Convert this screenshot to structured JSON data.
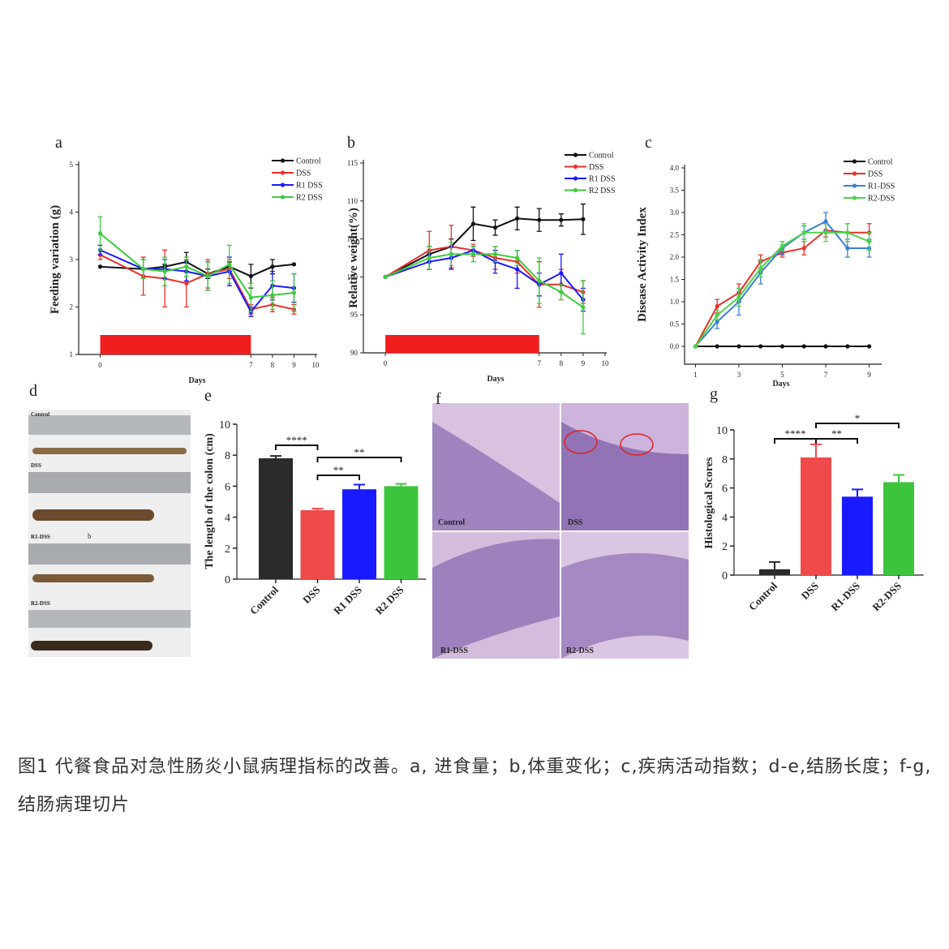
{
  "chart_data": [
    {
      "type": "line",
      "panel_label": "a",
      "y_label": "Feeding variation (g)",
      "x_label": "Days",
      "x": [
        0,
        2,
        3,
        4,
        5,
        6,
        7,
        8,
        9
      ],
      "xlim": [
        -1,
        10
      ],
      "xticks": [
        0,
        7,
        8,
        9,
        10
      ],
      "ylim": [
        1,
        5
      ],
      "yticks": [
        1,
        2,
        3,
        4,
        5
      ],
      "shaded_span": [
        0,
        7
      ],
      "shaded_color": "#f01e1e",
      "series": [
        {
          "name": "Control",
          "color": "#111111",
          "values": [
            2.85,
            2.8,
            2.85,
            2.95,
            2.7,
            2.85,
            2.65,
            2.85,
            2.9
          ],
          "errors": [
            0,
            0,
            0.05,
            0.2,
            0.1,
            0.1,
            0.25,
            0.15,
            0
          ]
        },
        {
          "name": "DSS",
          "color": "#e8302a",
          "values": [
            3.1,
            2.65,
            2.6,
            2.5,
            2.7,
            2.8,
            1.95,
            2.05,
            1.95
          ],
          "errors": [
            0.1,
            0.4,
            0.6,
            0.5,
            0.3,
            0.2,
            0.1,
            0.15,
            0.1
          ]
        },
        {
          "name": "R1 DSS",
          "color": "#1a1aff",
          "values": [
            3.2,
            2.8,
            2.8,
            2.75,
            2.65,
            2.75,
            1.9,
            2.45,
            2.4
          ],
          "errors": [
            0.1,
            0.2,
            0.2,
            0.2,
            0.3,
            0.3,
            0.1,
            0.3,
            0.3
          ]
        },
        {
          "name": "R2 DSS",
          "color": "#3ccc3c",
          "values": [
            3.55,
            2.8,
            2.75,
            2.85,
            2.65,
            2.9,
            2.2,
            2.25,
            2.3
          ],
          "errors": [
            0.35,
            0.2,
            0.3,
            0.2,
            0.3,
            0.4,
            0.3,
            0.3,
            0.4
          ]
        }
      ]
    },
    {
      "type": "line",
      "panel_label": "b",
      "y_label": "Relative weight(%)",
      "x_label": "Days",
      "x": [
        0,
        2,
        3,
        4,
        5,
        6,
        7,
        8,
        9
      ],
      "xlim": [
        -1,
        10
      ],
      "xticks": [
        0,
        7,
        8,
        9,
        10
      ],
      "ylim": [
        90,
        115
      ],
      "yticks": [
        90,
        95,
        100,
        105,
        110,
        115
      ],
      "shaded_span": [
        0,
        7
      ],
      "shaded_color": "#f01e1e",
      "series": [
        {
          "name": "Control",
          "color": "#111111",
          "values": [
            100,
            103,
            104,
            107,
            106.5,
            107.7,
            107.5,
            107.5,
            107.6
          ],
          "errors": [
            0,
            1,
            1,
            2.2,
            1,
            1.5,
            1.5,
            0.8,
            2
          ]
        },
        {
          "name": "DSS",
          "color": "#e8302a",
          "values": [
            100,
            103.5,
            104,
            103.5,
            102.5,
            102,
            99,
            99,
            98
          ],
          "errors": [
            0,
            2.5,
            2.8,
            0.8,
            1.5,
            1.5,
            3,
            2,
            1.5
          ]
        },
        {
          "name": "R1 DSS",
          "color": "#1a1aff",
          "values": [
            100,
            102,
            102.5,
            103.5,
            102,
            101,
            99,
            100.5,
            97
          ],
          "errors": [
            0,
            1,
            1.5,
            0.5,
            1.5,
            2.5,
            1.5,
            2.5,
            1.5
          ]
        },
        {
          "name": "R2 DSS",
          "color": "#3ccc3c",
          "values": [
            100,
            102.5,
            103,
            103,
            103,
            102.5,
            99.5,
            98,
            96
          ],
          "errors": [
            0,
            1.5,
            1.5,
            1,
            1,
            1,
            3,
            1,
            3.5
          ]
        }
      ]
    },
    {
      "type": "line",
      "panel_label": "c",
      "y_label": "Disease Activity Index",
      "x_label": "Days",
      "x": [
        1,
        2,
        3,
        4,
        5,
        6,
        7,
        8,
        9
      ],
      "xlim": [
        0.5,
        9.5
      ],
      "xticks": [
        1,
        3,
        5,
        7,
        9
      ],
      "ylim": [
        -0.4,
        4.0
      ],
      "yticks": [
        {
          "value": 0,
          "label": "0.0"
        },
        {
          "value": 0.5,
          "label": "0.5"
        },
        {
          "value": 1,
          "label": "1.0"
        },
        {
          "value": 1.5,
          "label": "1.5"
        },
        {
          "value": 2,
          "label": "2.0"
        },
        {
          "value": 2.5,
          "label": "2.5"
        },
        {
          "value": 3,
          "label": "3.0"
        },
        {
          "value": 3.5,
          "label": "3.5"
        },
        {
          "value": 4,
          "label": "4.0"
        }
      ],
      "series": [
        {
          "name": "Control",
          "color": "#111111",
          "values": [
            0,
            0,
            0,
            0,
            0,
            0,
            0,
            0,
            0
          ],
          "errors": [
            0,
            0,
            0,
            0,
            0,
            0,
            0,
            0,
            0
          ]
        },
        {
          "name": "DSS",
          "color": "#e8302a",
          "values": [
            0,
            0.9,
            1.2,
            1.9,
            2.1,
            2.2,
            2.6,
            2.55,
            2.55
          ],
          "errors": [
            0,
            0.15,
            0.2,
            0.15,
            0.1,
            0.15,
            0.15,
            0.2,
            0.2
          ]
        },
        {
          "name": "R1-DSS",
          "color": "#3a7fd8",
          "values": [
            0,
            0.55,
            1.0,
            1.65,
            2.2,
            2.55,
            2.8,
            2.2,
            2.2
          ],
          "errors": [
            0,
            0.15,
            0.3,
            0.25,
            0.15,
            0.15,
            0.2,
            0.2,
            0.2
          ]
        },
        {
          "name": "R2-DSS",
          "color": "#4cd44c",
          "values": [
            0,
            0.7,
            1.1,
            1.75,
            2.25,
            2.55,
            2.55,
            2.55,
            2.35
          ],
          "errors": [
            0,
            0.1,
            0.2,
            0.2,
            0.1,
            0.2,
            0.2,
            0.2,
            0.2
          ]
        }
      ]
    },
    {
      "type": "bar",
      "panel_label": "e",
      "y_label": "The length of the colon (cm)",
      "categories": [
        "Control",
        "DSS",
        "R1 DSS",
        "R2 DSS"
      ],
      "values": [
        7.8,
        4.45,
        5.8,
        6.0
      ],
      "errors": [
        0.15,
        0.1,
        0.3,
        0.15
      ],
      "colors": [
        "#2b2b2b",
        "#ef4a4a",
        "#1a1aff",
        "#3cc43c"
      ],
      "ylim": [
        0,
        10
      ],
      "yticks": [
        0,
        2,
        4,
        6,
        8,
        10
      ],
      "significance": [
        {
          "pair": [
            0,
            1
          ],
          "label": "****"
        },
        {
          "pair": [
            1,
            2
          ],
          "label": "**"
        },
        {
          "pair": [
            1,
            3
          ],
          "label": "**"
        }
      ]
    },
    {
      "type": "bar",
      "panel_label": "g",
      "y_label": "Histological Scores",
      "categories": [
        "Control",
        "DSS",
        "R1-DSS",
        "R2-DSS"
      ],
      "values": [
        0.4,
        8.1,
        5.4,
        6.4
      ],
      "errors": [
        0.5,
        0.9,
        0.5,
        0.5
      ],
      "colors": [
        "#2b2b2b",
        "#ef4a4a",
        "#1a1aff",
        "#3cc43c"
      ],
      "ylim": [
        0,
        10
      ],
      "yticks": [
        0,
        2,
        4,
        6,
        8,
        10
      ],
      "significance": [
        {
          "pair": [
            0,
            1
          ],
          "label": "****"
        },
        {
          "pair": [
            1,
            2
          ],
          "label": "**"
        },
        {
          "pair": [
            1,
            3
          ],
          "label": "*"
        }
      ]
    }
  ],
  "photo_panels": [
    {
      "panel_label": "d",
      "texts": [
        "Control",
        "DSS",
        "R1-DSS",
        "b",
        "R2-DSS"
      ]
    },
    {
      "panel_label": "f",
      "texts": [
        "Control",
        "DSS",
        "R1-DSS",
        "R2-DSS"
      ]
    }
  ],
  "caption": "图1 代餐食品对急性肠炎小鼠病理指标的改善。a, 进食量；b,体重变化；c,疾病活动指数；d-e,结肠长度；f-g,结肠病理切片"
}
